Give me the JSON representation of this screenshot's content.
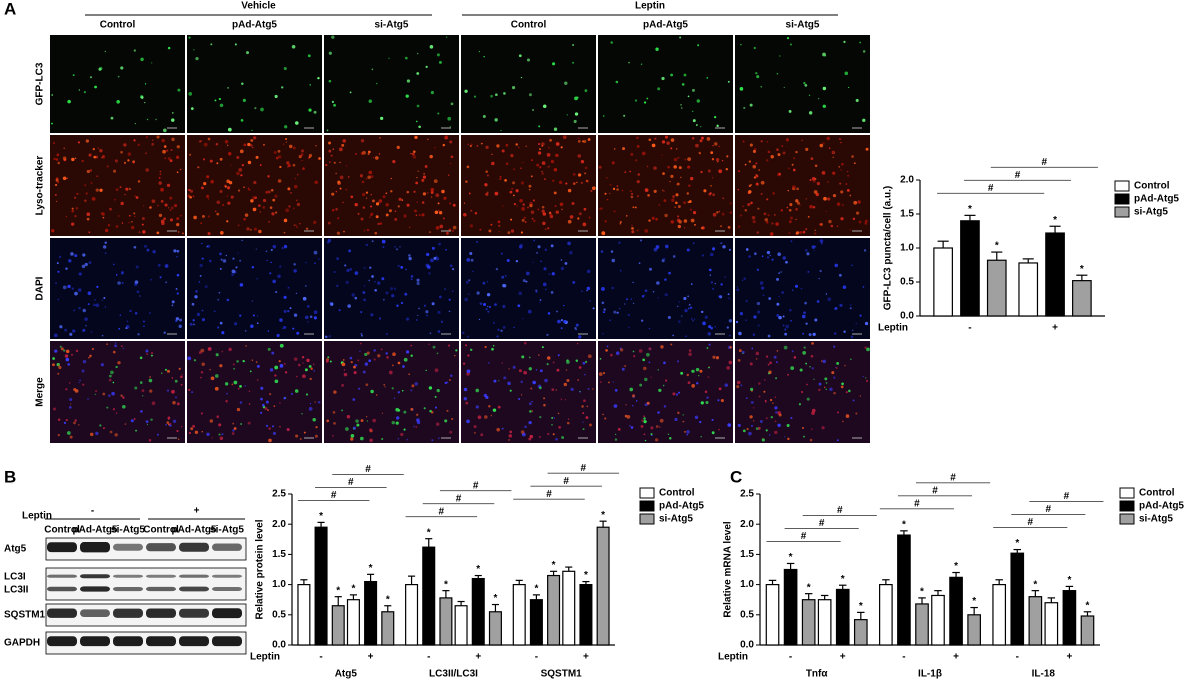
{
  "panel_labels": [
    "A",
    "B",
    "C"
  ],
  "microscopy": {
    "groups": [
      "Vehicle",
      "Leptin"
    ],
    "columns": [
      "Control",
      "pAd-Atg5",
      "si-Atg5",
      "Control",
      "pAd-Atg5",
      "si-Atg5"
    ],
    "rows": [
      "GFP-LC3",
      "Lyso-tracker",
      "DAPI",
      "Merge"
    ]
  },
  "blot": {
    "treatment": "Leptin",
    "conditions": [
      "-",
      "+"
    ],
    "lanes": [
      "Control",
      "pAd-Atg5",
      "si-Atg5",
      "Control",
      "pAd-Atg5",
      "si-Atg5"
    ],
    "proteins": [
      "Atg5",
      "LC3I",
      "LC3II",
      "SQSTM1",
      "GAPDH"
    ]
  },
  "chart_data": [
    {
      "type": "bar",
      "y_label": "GFP-LC3 puncta/cell (a.u.)",
      "x_label": "Leptin",
      "categories": [
        "-",
        "+"
      ],
      "ylim": [
        0,
        2
      ],
      "yticks": [
        {
          "value": 0,
          "label": "0.0"
        },
        0.5,
        {
          "value": 1,
          "label": "1.0"
        },
        1.5,
        {
          "value": 2,
          "label": "2.0"
        }
      ],
      "series": [
        {
          "name": "Control",
          "color": "#ffffff",
          "values": [
            1.0,
            0.78
          ],
          "errors": [
            0.1,
            0.06
          ],
          "value_marks": [
            null,
            null
          ],
          "bracket": "#"
        },
        {
          "name": "pAd-Atg5",
          "color": "#000000",
          "values": [
            1.4,
            1.22
          ],
          "errors": [
            0.08,
            0.1
          ],
          "value_marks": [
            "*",
            "*"
          ],
          "bracket": "#"
        },
        {
          "name": "si-Atg5",
          "color": "#a0a0a0",
          "values": [
            0.82,
            0.52
          ],
          "errors": [
            0.12,
            0.08
          ],
          "value_marks": [
            "*",
            "*"
          ],
          "bracket": "#"
        }
      ]
    },
    {
      "type": "bar",
      "y_label": "Relative protein level",
      "x_label": "Leptin",
      "groups": [
        "Atg5",
        "LC3II/LC3I",
        "SQSTM1"
      ],
      "categories": [
        "-",
        "+",
        "-",
        "+",
        "-",
        "+"
      ],
      "ylim": [
        0,
        2.5
      ],
      "yticks": [
        {
          "value": 0,
          "label": "0.0"
        },
        0.5,
        {
          "value": 1,
          "label": "1.0"
        },
        1.5,
        {
          "value": 2,
          "label": "2.0"
        },
        2.5
      ],
      "series": [
        {
          "name": "Control",
          "color": "#ffffff",
          "values": [
            1.0,
            0.75,
            1.0,
            0.65,
            1.0,
            1.22
          ],
          "errors": [
            0.08,
            0.08,
            0.14,
            0.07,
            0.07,
            0.07
          ],
          "value_marks": [
            null,
            "*",
            null,
            null,
            null,
            null
          ],
          "bracket": "#"
        },
        {
          "name": "pAd-Atg5",
          "color": "#000000",
          "values": [
            1.95,
            1.05,
            1.62,
            1.1,
            0.75,
            1.0
          ],
          "errors": [
            0.08,
            0.12,
            0.14,
            0.05,
            0.08,
            0.05
          ],
          "value_marks": [
            "*",
            "*",
            "*",
            "*",
            "*",
            "*"
          ],
          "bracket": "#"
        },
        {
          "name": "si-Atg5",
          "color": "#a0a0a0",
          "values": [
            0.65,
            0.55,
            0.78,
            0.55,
            1.15,
            1.95
          ],
          "errors": [
            0.15,
            0.1,
            0.12,
            0.12,
            0.07,
            0.1
          ],
          "value_marks": [
            "*",
            "*",
            "*",
            "*",
            "*",
            "*"
          ],
          "bracket": "#"
        }
      ]
    },
    {
      "type": "bar",
      "y_label": "Relative mRNA level",
      "x_label": "Leptin",
      "groups": [
        "Tnfα",
        "IL-1β",
        "IL-18"
      ],
      "categories": [
        "-",
        "+",
        "-",
        "+",
        "-",
        "+"
      ],
      "ylim": [
        0,
        2.5
      ],
      "yticks": [
        {
          "value": 0,
          "label": "0.0"
        },
        0.5,
        {
          "value": 1,
          "label": "1.0"
        },
        1.5,
        {
          "value": 2,
          "label": "2.0"
        },
        2.5
      ],
      "series": [
        {
          "name": "Control",
          "color": "#ffffff",
          "values": [
            1.0,
            0.75,
            1.0,
            0.82,
            1.0,
            0.7
          ],
          "errors": [
            0.07,
            0.07,
            0.08,
            0.08,
            0.08,
            0.08
          ],
          "value_marks": [
            null,
            null,
            null,
            null,
            null,
            null
          ],
          "bracket": "#"
        },
        {
          "name": "pAd-Atg5",
          "color": "#000000",
          "values": [
            1.25,
            0.92,
            1.82,
            1.12,
            1.52,
            0.9
          ],
          "errors": [
            0.1,
            0.07,
            0.07,
            0.08,
            0.06,
            0.07
          ],
          "value_marks": [
            "*",
            "*",
            "*",
            "*",
            "*",
            "*"
          ],
          "bracket": "#"
        },
        {
          "name": "si-Atg5",
          "color": "#a0a0a0",
          "values": [
            0.75,
            0.42,
            0.68,
            0.5,
            0.8,
            0.48
          ],
          "errors": [
            0.1,
            0.12,
            0.1,
            0.12,
            0.1,
            0.07
          ],
          "value_marks": [
            "*",
            "*",
            "*",
            "*",
            "*",
            "*"
          ],
          "bracket": "#"
        }
      ]
    }
  ]
}
